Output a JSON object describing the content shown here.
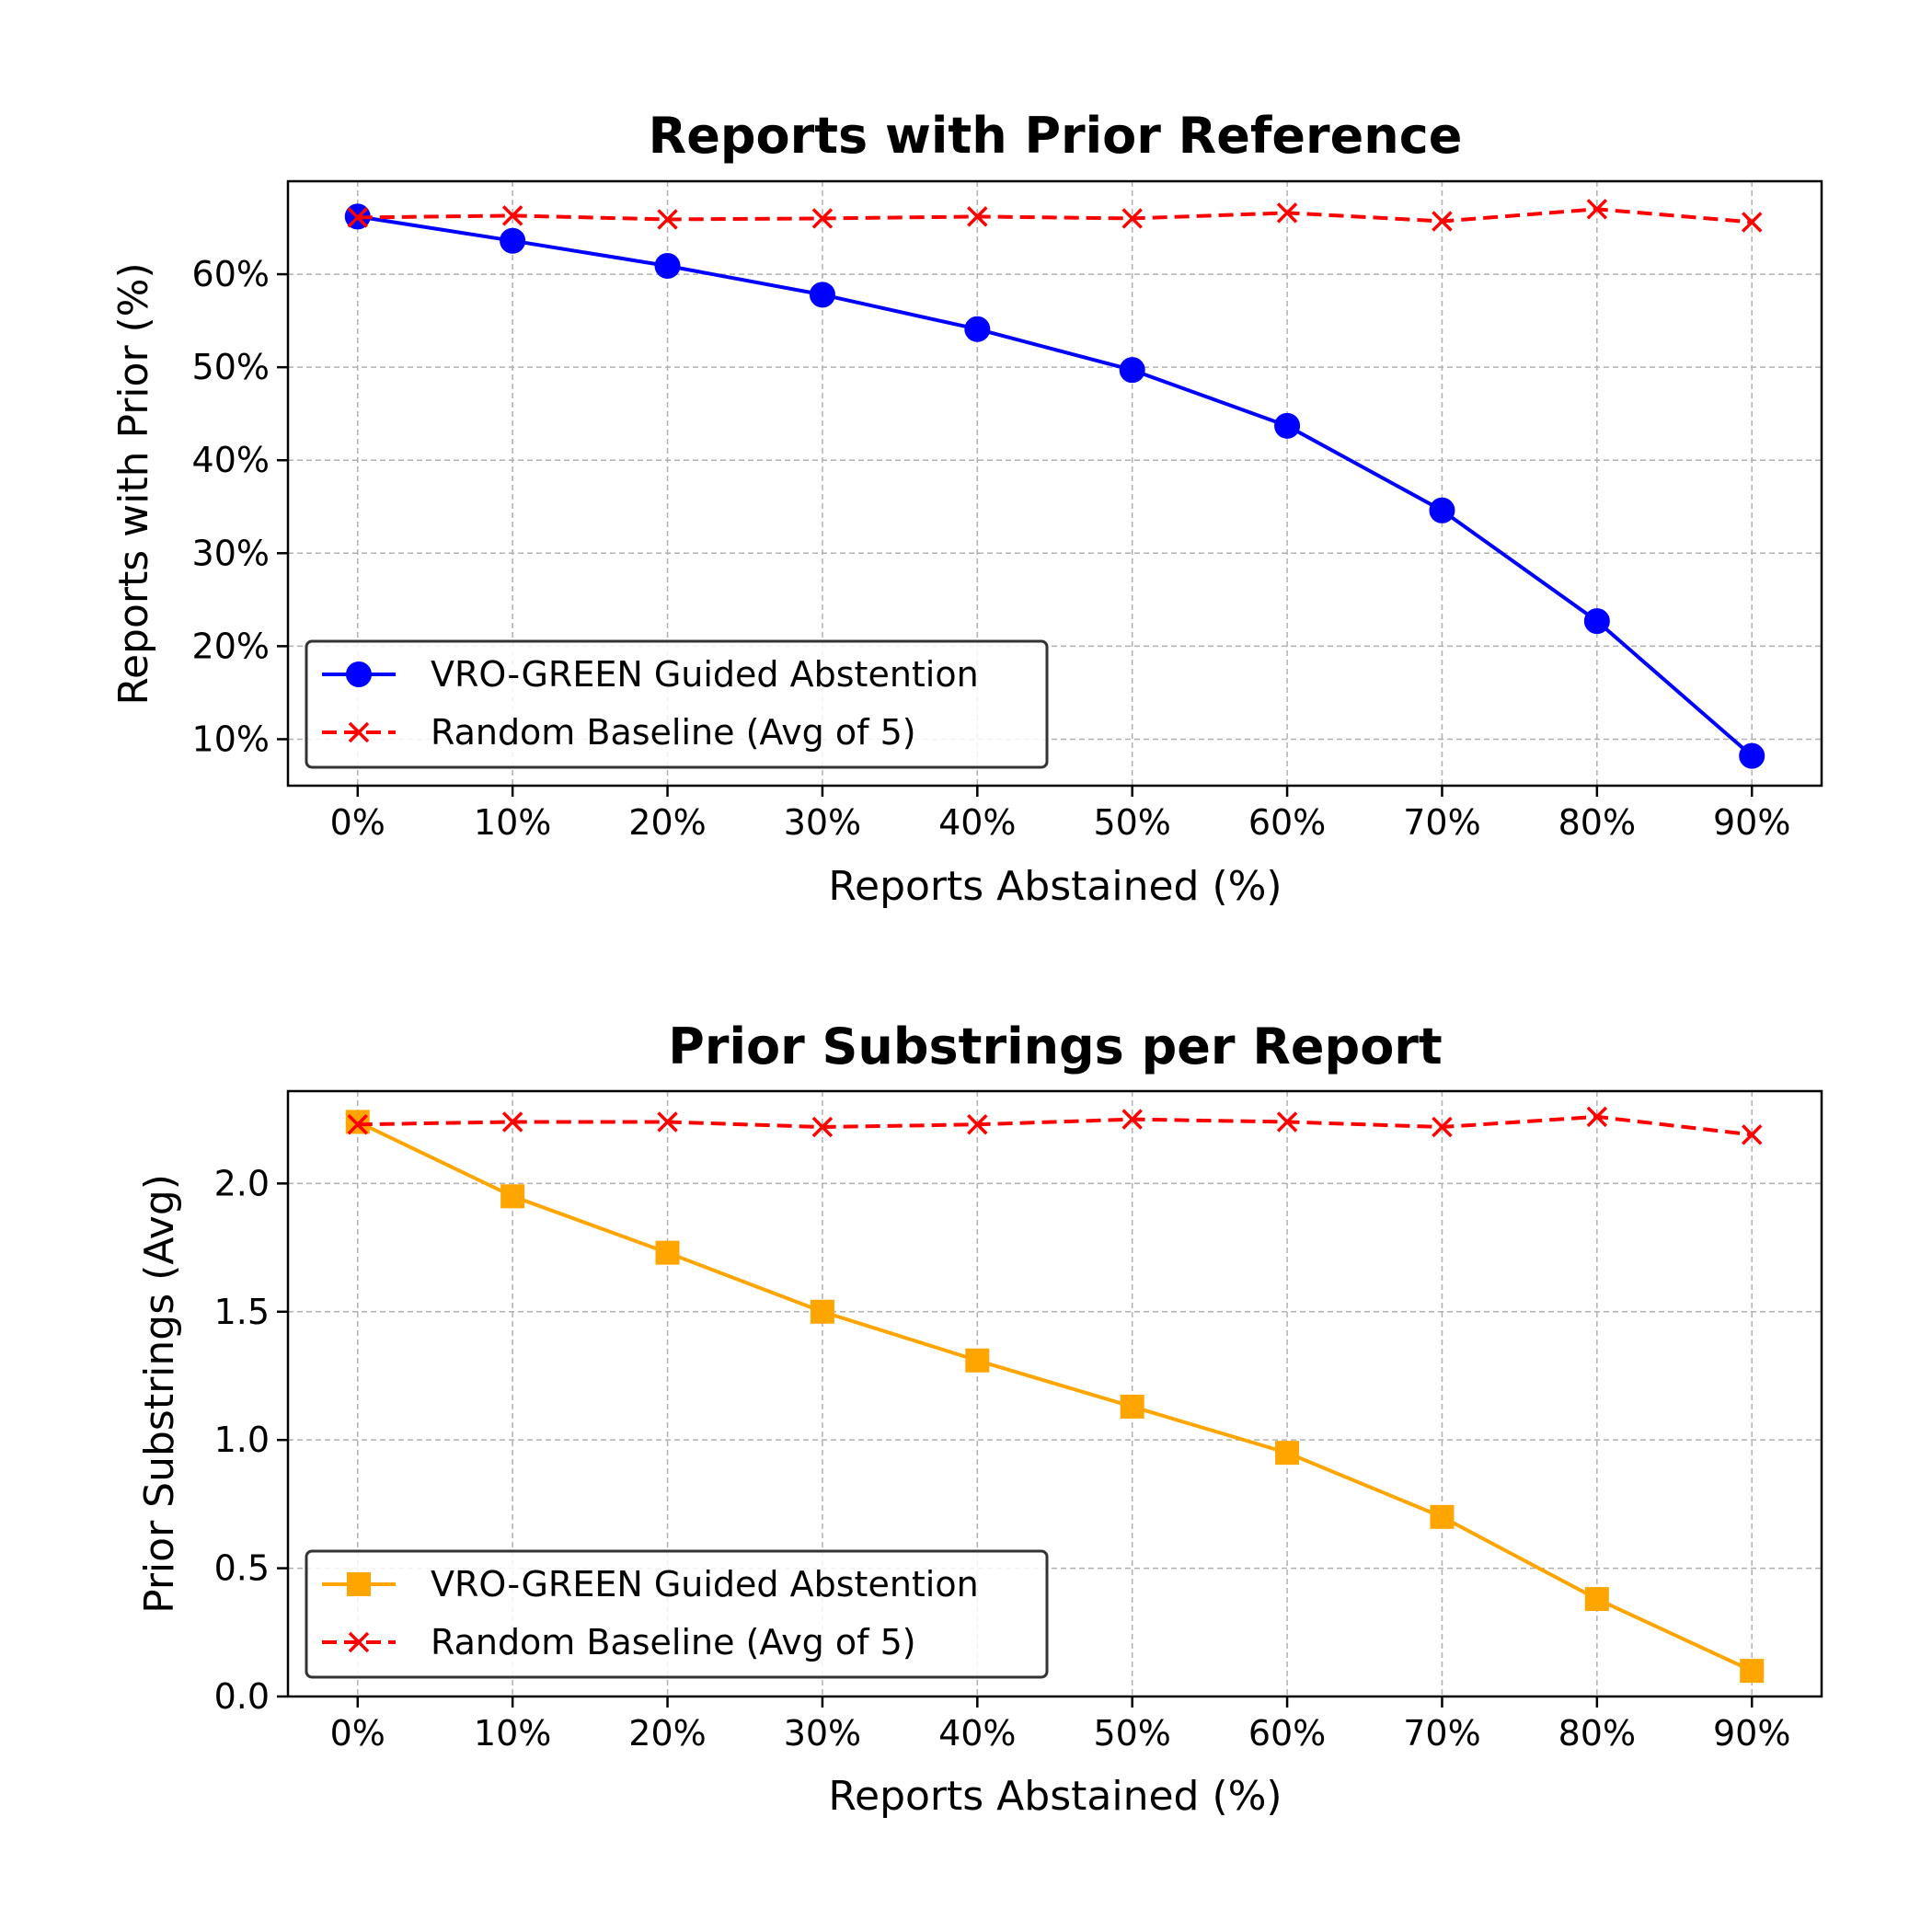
{
  "chart_data": [
    {
      "type": "line",
      "title": "Reports with Prior Reference",
      "xlabel": "Reports Abstained (%)",
      "ylabel": "Reports with Prior (%)",
      "categories": [
        "0%",
        "10%",
        "20%",
        "30%",
        "40%",
        "50%",
        "60%",
        "70%",
        "80%",
        "90%"
      ],
      "x": [
        0,
        10,
        20,
        30,
        40,
        50,
        60,
        70,
        80,
        90
      ],
      "ylim": [
        5,
        70
      ],
      "yticks": [
        10,
        20,
        30,
        40,
        50,
        60
      ],
      "ytick_labels": [
        "10%",
        "20%",
        "30%",
        "40%",
        "50%",
        "60%"
      ],
      "grid": true,
      "legend_position": "lower-left",
      "series": [
        {
          "name": "VRO-GREEN Guided Abstention",
          "values": [
            66.2,
            63.6,
            60.9,
            57.8,
            54.1,
            49.7,
            43.7,
            34.6,
            22.7,
            8.2
          ],
          "color": "#0000ff",
          "marker": "circle",
          "linestyle": "solid"
        },
        {
          "name": "Random Baseline (Avg of 5)",
          "values": [
            66.1,
            66.3,
            65.9,
            66.0,
            66.2,
            66.0,
            66.6,
            65.7,
            67.0,
            65.6
          ],
          "color": "#ff0000",
          "marker": "x",
          "linestyle": "dashed"
        }
      ]
    },
    {
      "type": "line",
      "title": "Prior Substrings per Report",
      "xlabel": "Reports Abstained (%)",
      "ylabel": "Prior Substrings (Avg)",
      "categories": [
        "0%",
        "10%",
        "20%",
        "30%",
        "40%",
        "50%",
        "60%",
        "70%",
        "80%",
        "90%"
      ],
      "x": [
        0,
        10,
        20,
        30,
        40,
        50,
        60,
        70,
        80,
        90
      ],
      "ylim": [
        0,
        2.36
      ],
      "yticks": [
        0,
        0.5,
        1.0,
        1.5,
        2.0
      ],
      "ytick_labels": [
        "0.0",
        "0.5",
        "1.0",
        "1.5",
        "2.0"
      ],
      "grid": true,
      "legend_position": "lower-left",
      "series": [
        {
          "name": "VRO-GREEN Guided Abstention",
          "values": [
            2.24,
            1.95,
            1.73,
            1.5,
            1.31,
            1.13,
            0.95,
            0.7,
            0.38,
            0.1
          ],
          "color": "#ffa500",
          "marker": "square",
          "linestyle": "solid"
        },
        {
          "name": "Random Baseline (Avg of 5)",
          "values": [
            2.23,
            2.24,
            2.24,
            2.22,
            2.23,
            2.25,
            2.24,
            2.22,
            2.26,
            2.19
          ],
          "color": "#ff0000",
          "marker": "x",
          "linestyle": "dashed"
        }
      ]
    }
  ]
}
